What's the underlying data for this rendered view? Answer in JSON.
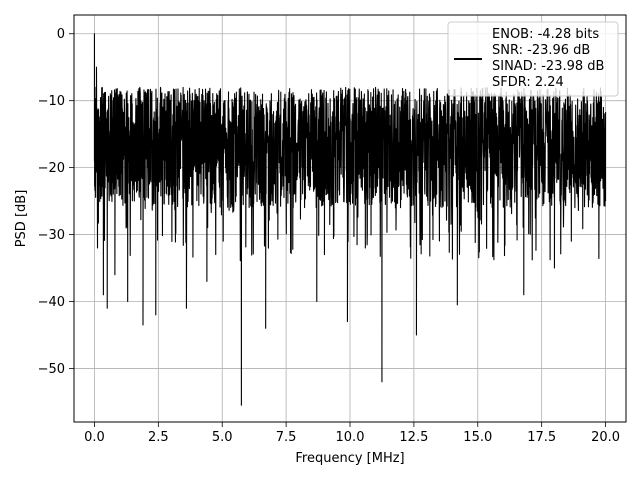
{
  "chart_data": {
    "type": "line",
    "title": "",
    "xlabel": "Frequency [MHz]",
    "ylabel": "PSD [dB]",
    "xlim": [
      -0.8,
      20.8
    ],
    "ylim": [
      -58,
      2.8
    ],
    "xticks": [
      0.0,
      2.5,
      5.0,
      7.5,
      10.0,
      12.5,
      15.0,
      17.5,
      20.0
    ],
    "xtick_labels": [
      "0.0",
      "2.5",
      "5.0",
      "7.5",
      "10.0",
      "12.5",
      "15.0",
      "17.5",
      "20.0"
    ],
    "yticks": [
      0,
      -10,
      -20,
      -30,
      -40,
      -50
    ],
    "ytick_labels": [
      "0",
      "−10",
      "−20",
      "−30",
      "−40",
      "−50"
    ],
    "grid": true,
    "legend": {
      "placement": "top-right",
      "line_color": "#000000",
      "entries": [
        "ENOB: -4.28 bits",
        "SNR: -23.96 dB",
        "SINAD: -23.98 dB",
        "SFDR: 2.24"
      ]
    },
    "series": [
      {
        "color": "#000000",
        "envelope": {
          "upper": -8,
          "lower": -26,
          "typical": -16
        },
        "x": [
          0.0,
          0.02,
          0.05,
          0.08,
          0.12,
          0.2,
          0.35,
          0.5,
          0.8,
          1.3,
          1.9,
          2.4,
          3.6,
          4.4,
          5.75,
          6.7,
          8.7,
          9.0,
          9.9,
          10.6,
          11.25,
          12.6,
          14.2,
          16.8,
          18.0,
          20.0
        ],
        "y": [
          0.0,
          -8.0,
          -15.0,
          -5.0,
          -32.0,
          -20.0,
          -39.0,
          -41.0,
          -36.0,
          -40.0,
          -43.5,
          -42.0,
          -41.0,
          -37.0,
          -55.5,
          -44.0,
          -40.0,
          -33.0,
          -43.0,
          -32.0,
          -52.0,
          -45.0,
          -40.5,
          -39.0,
          -35.0,
          -25.0
        ]
      }
    ]
  }
}
